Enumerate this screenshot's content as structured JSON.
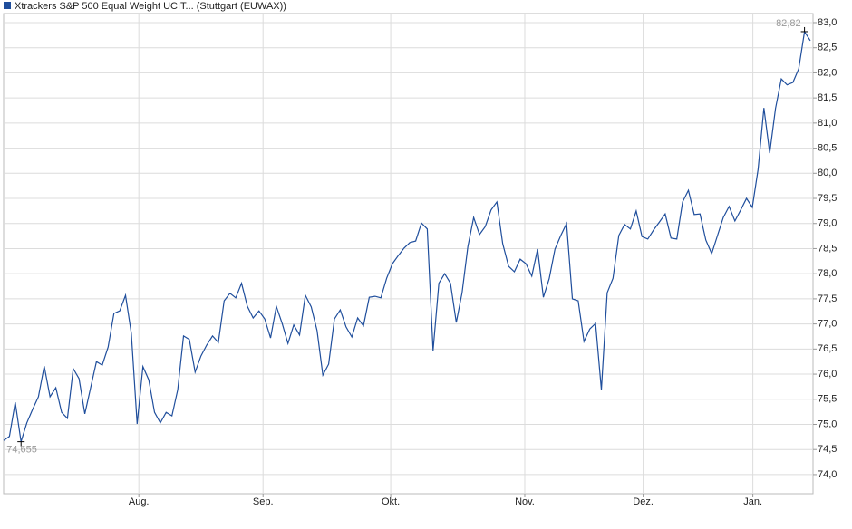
{
  "chart_data": {
    "type": "line",
    "title": "Xtrackers S&P 500 Equal Weight UCIT... (Stuttgart (EUWAX))",
    "series": [
      {
        "name": "Xtrackers S&P 500 Equal Weight UCIT... (Stuttgart (EUWAX))",
        "color": "#1f4e9c",
        "values": [
          74.68,
          74.76,
          75.44,
          74.655,
          75.03,
          75.3,
          75.55,
          76.16,
          75.55,
          75.73,
          75.24,
          75.12,
          76.11,
          75.91,
          75.21,
          75.73,
          76.25,
          76.18,
          76.54,
          77.21,
          77.26,
          77.57,
          76.81,
          75.01,
          76.15,
          75.89,
          75.24,
          75.03,
          75.24,
          75.17,
          75.69,
          76.76,
          76.69,
          76.04,
          76.36,
          76.58,
          76.76,
          76.63,
          77.46,
          77.61,
          77.52,
          77.81,
          77.35,
          77.12,
          77.26,
          77.1,
          76.72,
          77.35,
          77.01,
          76.61,
          76.98,
          76.78,
          77.57,
          77.34,
          76.87,
          75.98,
          76.2,
          77.1,
          77.28,
          76.94,
          76.74,
          77.12,
          76.96,
          77.53,
          77.55,
          77.52,
          77.91,
          78.2,
          78.36,
          78.51,
          78.62,
          78.65,
          79.01,
          78.89,
          76.47,
          77.81,
          78.0,
          77.81,
          77.03,
          77.62,
          78.54,
          79.12,
          78.78,
          78.94,
          79.27,
          79.43,
          78.6,
          78.15,
          78.04,
          78.29,
          78.2,
          77.95,
          78.49,
          77.53,
          77.9,
          78.49,
          78.76,
          79.0,
          77.5,
          77.46,
          76.65,
          76.9,
          77.01,
          75.69,
          77.62,
          77.91,
          78.76,
          78.98,
          78.89,
          79.25,
          78.74,
          78.69,
          78.87,
          79.03,
          79.19,
          78.71,
          78.69,
          79.43,
          79.66,
          79.18,
          79.19,
          78.67,
          78.4,
          78.76,
          79.12,
          79.34,
          79.05,
          79.27,
          79.5,
          79.32,
          80.08,
          81.3,
          80.4,
          81.29,
          81.88,
          81.76,
          81.81,
          82.08,
          82.82,
          82.64
        ]
      }
    ],
    "annotations": [
      {
        "text": "82,82"
      },
      {
        "text": "74,655"
      }
    ],
    "xlim": [
      0,
      139
    ],
    "xticks": [
      {
        "value": 23.3,
        "label": "Aug."
      },
      {
        "value": 44.7,
        "label": "Sep."
      },
      {
        "value": 66.7,
        "label": "Okt."
      },
      {
        "value": 89.8,
        "label": "Nov."
      },
      {
        "value": 110.2,
        "label": "Dez."
      },
      {
        "value": 129.1,
        "label": "Jan."
      }
    ],
    "ylim": [
      73.62,
      83.18
    ],
    "yticks": [
      {
        "value": 74.0,
        "label": "74,0"
      },
      {
        "value": 74.5,
        "label": "74,5"
      },
      {
        "value": 75.0,
        "label": "75,0"
      },
      {
        "value": 75.5,
        "label": "75,5"
      },
      {
        "value": 76.0,
        "label": "76,0"
      },
      {
        "value": 76.5,
        "label": "76,5"
      },
      {
        "value": 77.0,
        "label": "77,0"
      },
      {
        "value": 77.5,
        "label": "77,5"
      },
      {
        "value": 78.0,
        "label": "78,0"
      },
      {
        "value": 78.5,
        "label": "78,5"
      },
      {
        "value": 79.0,
        "label": "79,0"
      },
      {
        "value": 79.5,
        "label": "79,5"
      },
      {
        "value": 80.0,
        "label": "80,0"
      },
      {
        "value": 80.5,
        "label": "80,5"
      },
      {
        "value": 81.0,
        "label": "81,0"
      },
      {
        "value": 81.5,
        "label": "81,5"
      },
      {
        "value": 82.0,
        "label": "82,0"
      },
      {
        "value": 82.5,
        "label": "82,5"
      },
      {
        "value": 83.0,
        "label": "83,0"
      }
    ],
    "grid": true
  }
}
